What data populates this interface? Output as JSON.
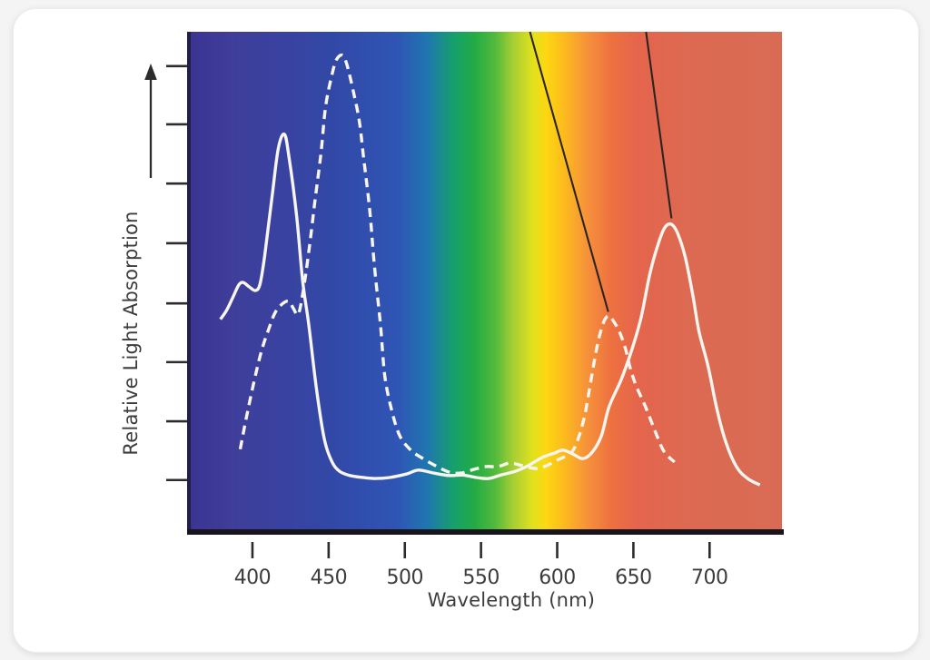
{
  "figure": {
    "card_background": "#ffffff",
    "page_background": "#f4f4f4",
    "curve_color": "#f8f5ee",
    "axis_color": "#2c2c2c",
    "leader_line_color": "#2b2420",
    "bottom_axis_bar_color": "#18161c",
    "left_axis_line_color": "#201f47",
    "text_color": "#3c3c3c"
  },
  "chart_data": {
    "type": "line",
    "title": "",
    "description_visible_elements": "Two absorption curves (one solid, one dashed) plotted over a visible-light spectrum background; two unlabeled black leader lines descend from the top edge to the two right-hand peaks",
    "x_axis": {
      "label": "Wavelength (nm)",
      "ticks": [
        400,
        450,
        500,
        550,
        600,
        650,
        700
      ],
      "range_nm": [
        359.5,
        747.5
      ],
      "grid": false
    },
    "y_axis": {
      "label": "Relative Light Absorption",
      "numeric_labels": false,
      "tick_positions_relative": [
        0.931,
        0.814,
        0.695,
        0.575,
        0.454,
        0.336,
        0.217,
        0.099
      ],
      "range": [
        0,
        1
      ],
      "arrow": "up"
    },
    "spectrum_gradient_stops": [
      [
        0.0,
        "#3b3492"
      ],
      [
        0.07,
        "#3f3e9a"
      ],
      [
        0.14,
        "#3a419f"
      ],
      [
        0.24,
        "#3248a6"
      ],
      [
        0.35,
        "#2f55b5"
      ],
      [
        0.4,
        "#1f76b0"
      ],
      [
        0.445,
        "#16a06b"
      ],
      [
        0.48,
        "#23ab44"
      ],
      [
        0.515,
        "#52ba3e"
      ],
      [
        0.545,
        "#a6ce33"
      ],
      [
        0.578,
        "#e0e11d"
      ],
      [
        0.6,
        "#fcd813"
      ],
      [
        0.63,
        "#fcbc1c"
      ],
      [
        0.67,
        "#f6923a"
      ],
      [
        0.71,
        "#ee7140"
      ],
      [
        0.755,
        "#e4654c"
      ],
      [
        0.85,
        "#dc6a52"
      ],
      [
        1.0,
        "#d96b54"
      ]
    ],
    "series": [
      {
        "name": "solid-curve",
        "style": "solid",
        "color": "#f8f5ee",
        "points": [
          [
            379,
            0.422
          ],
          [
            383,
            0.44
          ],
          [
            387,
            0.465
          ],
          [
            391,
            0.491
          ],
          [
            394,
            0.496
          ],
          [
            398,
            0.487
          ],
          [
            402,
            0.48
          ],
          [
            405,
            0.493
          ],
          [
            408,
            0.549
          ],
          [
            413,
            0.672
          ],
          [
            417,
            0.766
          ],
          [
            421,
            0.794
          ],
          [
            424,
            0.748
          ],
          [
            429,
            0.63
          ],
          [
            433,
            0.498
          ],
          [
            437,
            0.411
          ],
          [
            442,
            0.283
          ],
          [
            447,
            0.184
          ],
          [
            452,
            0.137
          ],
          [
            457,
            0.117
          ],
          [
            464,
            0.108
          ],
          [
            473,
            0.104
          ],
          [
            481,
            0.102
          ],
          [
            490,
            0.104
          ],
          [
            501,
            0.111
          ],
          [
            509,
            0.119
          ],
          [
            519,
            0.113
          ],
          [
            529,
            0.108
          ],
          [
            538,
            0.109
          ],
          [
            547,
            0.104
          ],
          [
            555,
            0.102
          ],
          [
            563,
            0.109
          ],
          [
            573,
            0.117
          ],
          [
            581,
            0.128
          ],
          [
            590,
            0.144
          ],
          [
            598,
            0.153
          ],
          [
            604,
            0.159
          ],
          [
            611,
            0.15
          ],
          [
            617,
            0.142
          ],
          [
            623,
            0.155
          ],
          [
            629,
            0.188
          ],
          [
            634,
            0.246
          ],
          [
            642,
            0.301
          ],
          [
            649,
            0.361
          ],
          [
            655,
            0.425
          ],
          [
            661,
            0.516
          ],
          [
            667,
            0.58
          ],
          [
            671,
            0.608
          ],
          [
            675,
            0.613
          ],
          [
            679,
            0.595
          ],
          [
            684,
            0.547
          ],
          [
            689,
            0.471
          ],
          [
            693,
            0.398
          ],
          [
            699,
            0.328
          ],
          [
            705,
            0.239
          ],
          [
            711,
            0.172
          ],
          [
            718,
            0.124
          ],
          [
            725,
            0.102
          ],
          [
            733,
            0.089
          ]
        ]
      },
      {
        "name": "dashed-curve",
        "style": "dashed",
        "color": "#f8f5ee",
        "points": [
          [
            392,
            0.161
          ],
          [
            396,
            0.224
          ],
          [
            401,
            0.296
          ],
          [
            406,
            0.359
          ],
          [
            411,
            0.405
          ],
          [
            415,
            0.436
          ],
          [
            420,
            0.454
          ],
          [
            424,
            0.458
          ],
          [
            427,
            0.443
          ],
          [
            430,
            0.432
          ],
          [
            433,
            0.473
          ],
          [
            437,
            0.558
          ],
          [
            441,
            0.659
          ],
          [
            445,
            0.757
          ],
          [
            448,
            0.849
          ],
          [
            452,
            0.911
          ],
          [
            455,
            0.943
          ],
          [
            459,
            0.953
          ],
          [
            462,
            0.934
          ],
          [
            466,
            0.883
          ],
          [
            470,
            0.823
          ],
          [
            473,
            0.746
          ],
          [
            477,
            0.641
          ],
          [
            480,
            0.531
          ],
          [
            484,
            0.412
          ],
          [
            487,
            0.305
          ],
          [
            492,
            0.232
          ],
          [
            497,
            0.186
          ],
          [
            504,
            0.159
          ],
          [
            512,
            0.142
          ],
          [
            520,
            0.128
          ],
          [
            529,
            0.115
          ],
          [
            537,
            0.113
          ],
          [
            545,
            0.12
          ],
          [
            553,
            0.126
          ],
          [
            561,
            0.126
          ],
          [
            569,
            0.133
          ],
          [
            577,
            0.128
          ],
          [
            586,
            0.122
          ],
          [
            593,
            0.128
          ],
          [
            600,
            0.139
          ],
          [
            605,
            0.146
          ],
          [
            610,
            0.157
          ],
          [
            614,
            0.184
          ],
          [
            618,
            0.228
          ],
          [
            621,
            0.279
          ],
          [
            625,
            0.349
          ],
          [
            628,
            0.392
          ],
          [
            631,
            0.42
          ],
          [
            634,
            0.429
          ],
          [
            637,
            0.418
          ],
          [
            641,
            0.396
          ],
          [
            645,
            0.361
          ],
          [
            648,
            0.323
          ],
          [
            652,
            0.287
          ],
          [
            658,
            0.246
          ],
          [
            664,
            0.199
          ],
          [
            670,
            0.157
          ],
          [
            677,
            0.135
          ]
        ]
      }
    ],
    "leader_lines": [
      {
        "name": "left-leader-line",
        "from": [
          582.1,
          1.0
        ],
        "to": [
          633.5,
          0.437
        ]
      },
      {
        "name": "right-leader-line",
        "from": [
          658.3,
          1.0
        ],
        "to": [
          675.0,
          0.625
        ]
      }
    ],
    "legend": "none"
  }
}
